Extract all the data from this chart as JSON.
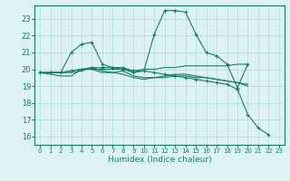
{
  "xlabel": "Humidex (Indice chaleur)",
  "ylabel": "",
  "bg_color": "#ddf2f2",
  "grid_color": "#aadddd",
  "line_color": "#1a7a6a",
  "xlim": [
    -0.5,
    23.5
  ],
  "ylim": [
    15.5,
    23.8
  ],
  "yticks": [
    16,
    17,
    18,
    19,
    20,
    21,
    22,
    23
  ],
  "xticks": [
    0,
    1,
    2,
    3,
    4,
    5,
    6,
    7,
    8,
    9,
    10,
    11,
    12,
    13,
    14,
    15,
    16,
    17,
    18,
    19,
    20,
    21,
    22,
    23
  ],
  "series": [
    {
      "x": [
        0,
        1,
        2,
        3,
        4,
        5,
        6,
        7,
        8,
        9,
        10,
        11,
        12,
        13,
        14,
        15,
        16,
        17,
        18,
        19,
        20
      ],
      "y": [
        19.8,
        19.8,
        19.8,
        21.0,
        21.5,
        21.6,
        20.3,
        20.1,
        20.0,
        19.8,
        19.9,
        22.1,
        23.5,
        23.5,
        23.4,
        22.1,
        21.0,
        20.8,
        20.3,
        18.9,
        20.3
      ],
      "marker": "+"
    },
    {
      "x": [
        0,
        1,
        2,
        3,
        4,
        5,
        6,
        7,
        8,
        9,
        10,
        11,
        12,
        13,
        14,
        15,
        16,
        17,
        18,
        19,
        20
      ],
      "y": [
        19.8,
        19.7,
        19.6,
        19.6,
        20.0,
        20.0,
        19.8,
        19.8,
        19.7,
        19.5,
        19.4,
        19.5,
        19.6,
        19.7,
        19.7,
        19.6,
        19.5,
        19.4,
        19.3,
        19.2,
        19.1
      ],
      "marker": null
    },
    {
      "x": [
        0,
        1,
        2,
        3,
        4,
        5,
        6,
        7,
        8,
        9,
        10,
        11,
        12,
        13,
        14,
        15,
        16,
        17,
        18,
        19,
        20
      ],
      "y": [
        19.8,
        19.8,
        19.8,
        19.8,
        19.9,
        20.1,
        19.9,
        19.8,
        19.9,
        19.6,
        19.5,
        19.5,
        19.5,
        19.6,
        19.6,
        19.5,
        19.5,
        19.4,
        19.3,
        19.2,
        19.0
      ],
      "marker": null
    },
    {
      "x": [
        0,
        1,
        2,
        3,
        4,
        5,
        6,
        7,
        8,
        9,
        10,
        11,
        12,
        13,
        14,
        15,
        16,
        17,
        18,
        19,
        20
      ],
      "y": [
        19.8,
        19.8,
        19.8,
        19.9,
        20.0,
        20.0,
        20.0,
        20.0,
        20.0,
        19.9,
        20.0,
        20.0,
        20.1,
        20.1,
        20.2,
        20.2,
        20.2,
        20.2,
        20.2,
        20.3,
        20.3
      ],
      "marker": null
    },
    {
      "x": [
        0,
        1,
        2,
        3,
        4,
        5,
        6,
        7,
        8,
        9,
        10,
        11,
        12,
        13,
        14,
        15,
        16,
        17,
        18,
        19,
        20,
        21,
        22
      ],
      "y": [
        19.8,
        19.8,
        19.8,
        19.9,
        20.0,
        20.1,
        20.1,
        20.1,
        20.1,
        19.9,
        19.9,
        19.8,
        19.7,
        19.6,
        19.5,
        19.4,
        19.3,
        19.2,
        19.1,
        18.8,
        17.3,
        16.5,
        16.1
      ],
      "marker": "+"
    }
  ]
}
